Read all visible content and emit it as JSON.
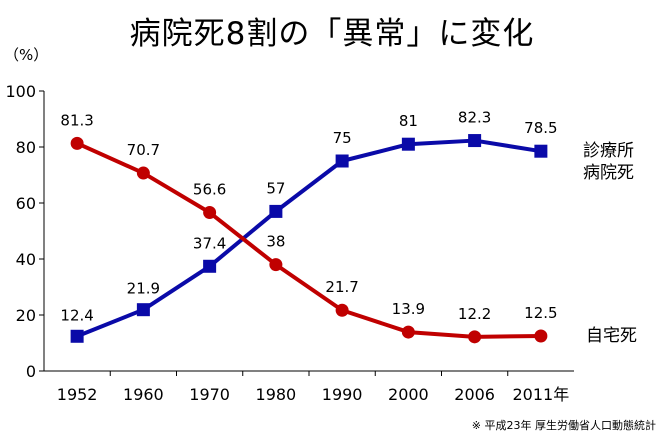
{
  "title": "病院死8割の「異常」に変化",
  "unit_label": "（%）",
  "source_note": "※ 平成23年 厚生労働省人口動態統計",
  "chart_data": {
    "type": "line",
    "title": "病院死8割の「異常」に変化",
    "xlabel": "",
    "ylabel": "（%）",
    "categories": [
      "1952",
      "1960",
      "1970",
      "1980",
      "1990",
      "2000",
      "2006",
      "2011年"
    ],
    "y_ticks": [
      "0",
      "20",
      "40",
      "60",
      "80",
      "100"
    ],
    "ylim": [
      0,
      100
    ],
    "grid": false,
    "series": [
      {
        "name": "診療所病院死",
        "label_lines": [
          "診療所",
          "病院死"
        ],
        "values": [
          12.4,
          21.9,
          37.4,
          57,
          75,
          81,
          82.3,
          78.5
        ],
        "labels": [
          "12.4",
          "21.9",
          "37.4",
          "57",
          "75",
          "81",
          "82.3",
          "78.5"
        ],
        "color": "#0a0aa8",
        "marker": "square"
      },
      {
        "name": "自宅死",
        "label_lines": [
          "自宅死"
        ],
        "values": [
          81.3,
          70.7,
          56.6,
          38,
          21.7,
          13.9,
          12.2,
          12.5
        ],
        "labels": [
          "81.3",
          "70.7",
          "56.6",
          "38",
          "21.7",
          "13.9",
          "12.2",
          "12.5"
        ],
        "color": "#c00000",
        "marker": "circle"
      }
    ]
  }
}
